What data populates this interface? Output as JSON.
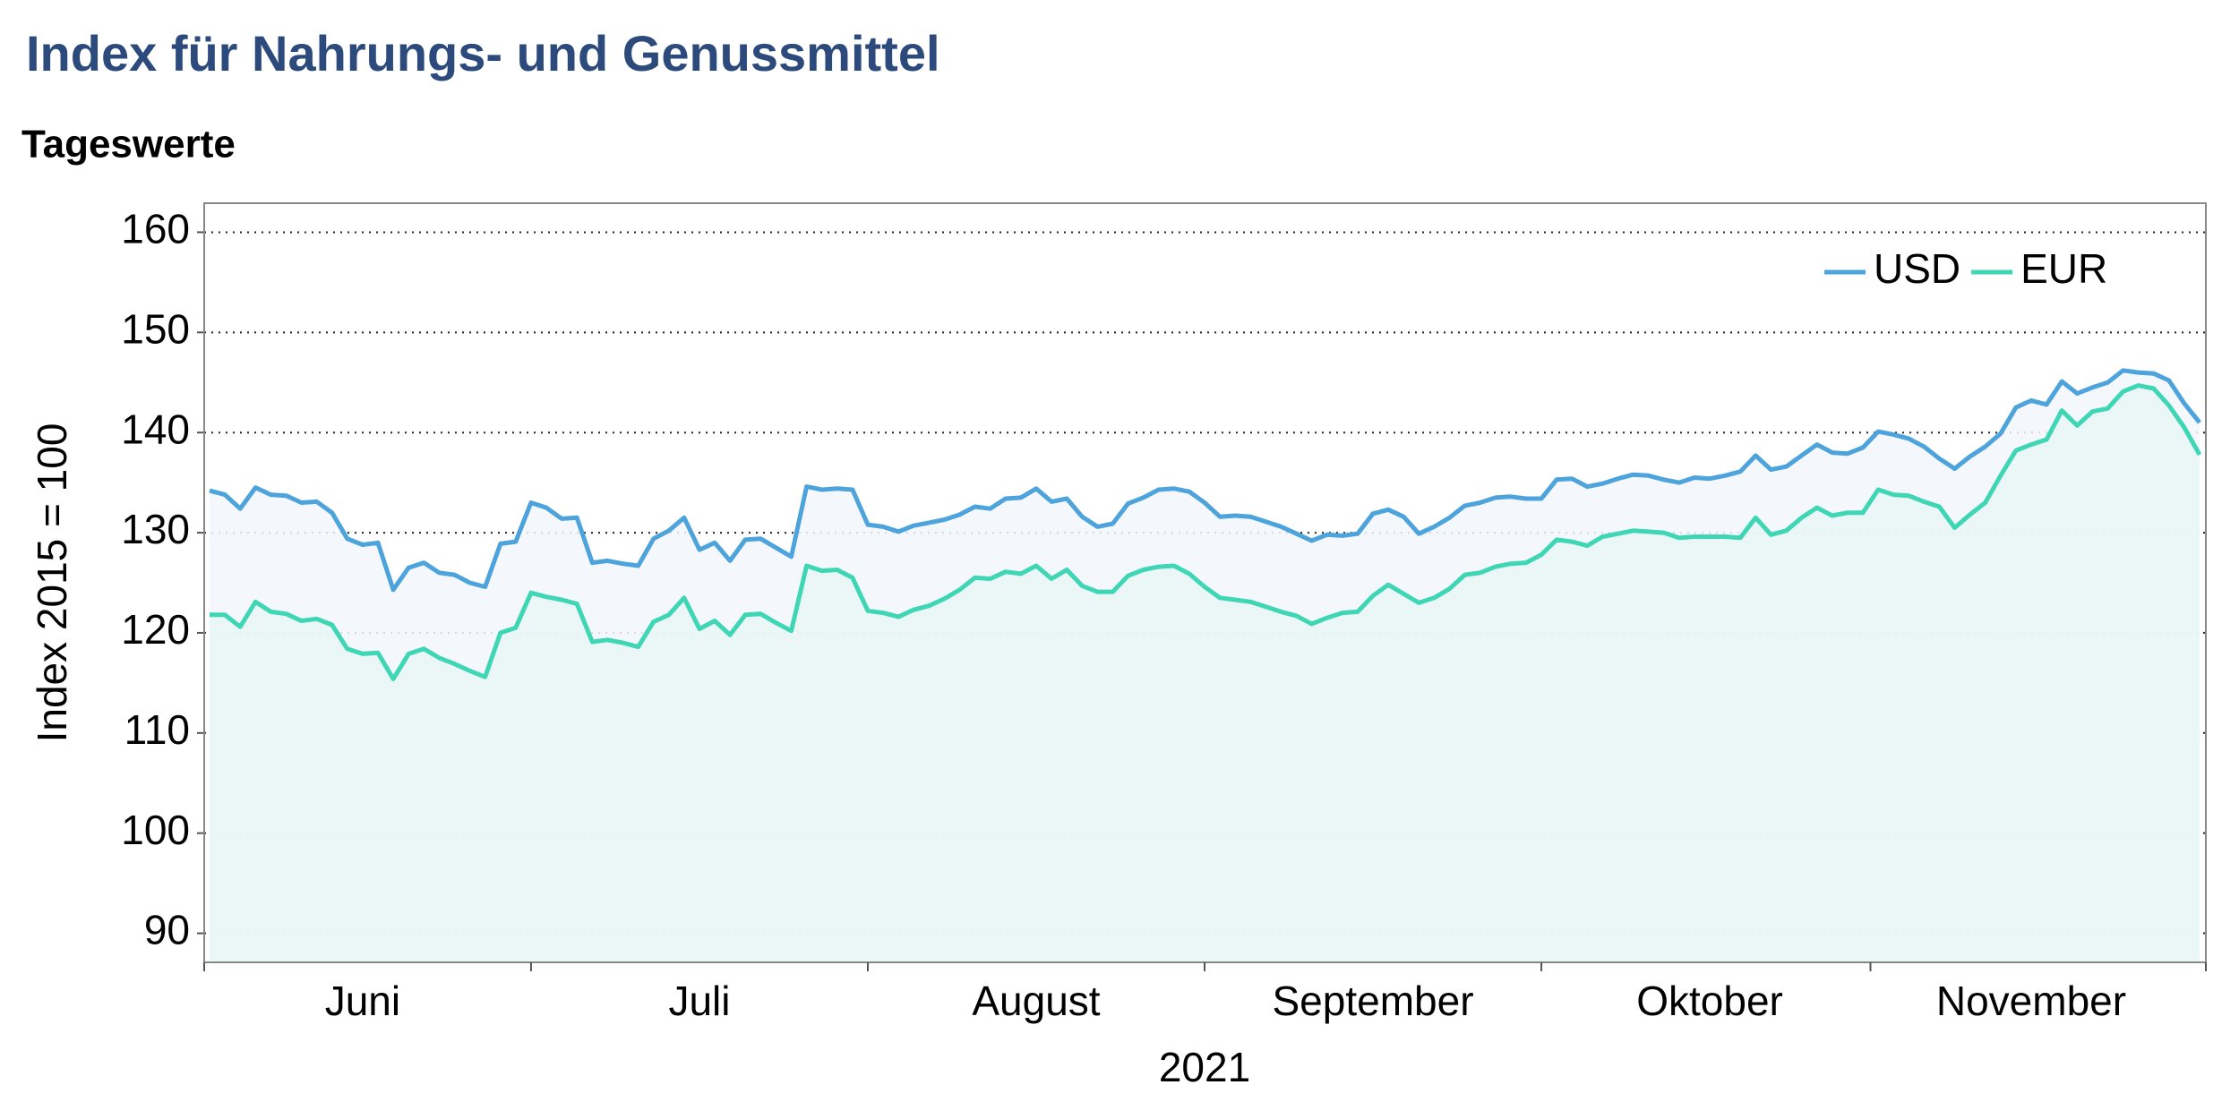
{
  "chart_data": {
    "type": "line",
    "title": "Index für Nahrungs- und Genussmittel",
    "subtitle": "Tageswerte",
    "ylabel": "Index 2015 = 100",
    "xlabel": "2021",
    "categories": [
      null,
      null,
      null,
      null,
      null,
      null,
      null,
      null,
      null,
      null,
      "Juni",
      null,
      null,
      null,
      null,
      null,
      null,
      null,
      null,
      null,
      null,
      null,
      null,
      null,
      null,
      null,
      null,
      null,
      null,
      null,
      null,
      null,
      "Juli",
      null,
      null,
      null,
      null,
      null,
      null,
      null,
      null,
      null,
      null,
      null,
      null,
      null,
      null,
      null,
      null,
      null,
      null,
      null,
      null,
      null,
      "August",
      null,
      null,
      null,
      null,
      null,
      null,
      null,
      null,
      null,
      null,
      null,
      null,
      null,
      null,
      null,
      null,
      null,
      null,
      null,
      null,
      null,
      "September",
      null,
      null,
      null,
      null,
      null,
      null,
      null,
      null,
      null,
      null,
      null,
      null,
      null,
      null,
      null,
      null,
      null,
      null,
      null,
      null,
      null,
      "Oktober",
      null,
      null,
      null,
      null,
      null,
      null,
      null,
      null,
      null,
      null,
      null,
      null,
      null,
      null,
      null,
      null,
      null,
      null,
      null,
      null,
      "November",
      null,
      null,
      null,
      null,
      null,
      null,
      null,
      null,
      null,
      null,
      null
    ],
    "series": [
      {
        "name": "USD",
        "color": "#4da3db",
        "values": [
          134.2,
          133.8,
          132.4,
          134.5,
          133.8,
          133.7,
          133.0,
          133.1,
          132.0,
          129.4,
          128.8,
          129.0,
          124.3,
          126.5,
          127.0,
          126.0,
          125.8,
          125.0,
          124.6,
          128.9,
          129.1,
          133.0,
          132.5,
          131.4,
          131.5,
          127.0,
          127.2,
          126.9,
          126.7,
          129.4,
          130.2,
          131.5,
          128.3,
          129.0,
          127.2,
          129.3,
          129.4,
          128.5,
          127.6,
          134.6,
          134.3,
          134.4,
          134.3,
          130.8,
          130.6,
          130.1,
          130.7,
          131.0,
          131.3,
          131.8,
          132.6,
          132.4,
          133.4,
          133.5,
          134.4,
          133.1,
          133.4,
          131.6,
          130.6,
          130.9,
          132.9,
          133.5,
          134.3,
          134.4,
          134.1,
          133.0,
          131.6,
          131.7,
          131.6,
          131.1,
          130.6,
          129.9,
          129.2,
          129.8,
          129.7,
          129.9,
          131.9,
          132.3,
          131.6,
          129.9,
          130.6,
          131.5,
          132.7,
          133.0,
          133.5,
          133.6,
          133.4,
          133.4,
          135.3,
          135.4,
          134.6,
          134.9,
          135.4,
          135.8,
          135.7,
          135.3,
          135.0,
          135.5,
          135.4,
          135.7,
          136.1,
          137.7,
          136.3,
          136.6,
          137.7,
          138.8,
          138.0,
          137.9,
          138.5,
          140.1,
          139.8,
          139.4,
          138.6,
          137.4,
          136.4,
          137.6,
          138.6,
          139.9,
          142.5,
          143.2,
          142.8,
          145.1,
          143.9,
          144.5,
          145.0,
          146.2,
          146.0,
          145.9,
          145.2,
          142.9,
          141.0
        ]
      },
      {
        "name": "EUR",
        "color": "#3fd6b5",
        "values": [
          121.8,
          121.8,
          120.6,
          123.1,
          122.1,
          121.9,
          121.2,
          121.4,
          120.8,
          118.4,
          117.9,
          118.0,
          115.4,
          117.9,
          118.4,
          117.5,
          116.9,
          116.2,
          115.6,
          120.0,
          120.5,
          124.0,
          123.6,
          123.3,
          122.9,
          119.1,
          119.3,
          119.0,
          118.6,
          121.1,
          121.8,
          123.5,
          120.4,
          121.2,
          119.8,
          121.8,
          121.9,
          121.0,
          120.2,
          126.7,
          126.2,
          126.3,
          125.5,
          122.2,
          122.0,
          121.6,
          122.3,
          122.7,
          123.4,
          124.3,
          125.5,
          125.4,
          126.1,
          125.9,
          126.7,
          125.4,
          126.3,
          124.7,
          124.1,
          124.1,
          125.7,
          126.3,
          126.6,
          126.7,
          125.9,
          124.6,
          123.5,
          123.3,
          123.1,
          122.6,
          122.1,
          121.7,
          120.9,
          121.5,
          122.0,
          122.1,
          123.7,
          124.8,
          123.9,
          123.0,
          123.5,
          124.4,
          125.8,
          126.0,
          126.6,
          126.9,
          127.0,
          127.8,
          129.3,
          129.1,
          128.7,
          129.6,
          129.9,
          130.2,
          130.1,
          130.0,
          129.5,
          129.6,
          129.6,
          129.6,
          129.5,
          131.5,
          129.8,
          130.2,
          131.5,
          132.5,
          131.7,
          132.0,
          132.0,
          134.3,
          133.8,
          133.7,
          133.1,
          132.6,
          130.5,
          131.8,
          133.0,
          135.7,
          138.2,
          138.8,
          139.3,
          142.2,
          140.7,
          142.1,
          142.4,
          144.1,
          144.7,
          144.4,
          142.7,
          140.5,
          137.8
        ]
      }
    ],
    "ylim": [
      87.1,
      162.9
    ],
    "yticks": [
      90,
      100,
      110,
      120,
      130,
      140,
      150,
      160
    ],
    "grid": true,
    "legend": "top-right"
  }
}
